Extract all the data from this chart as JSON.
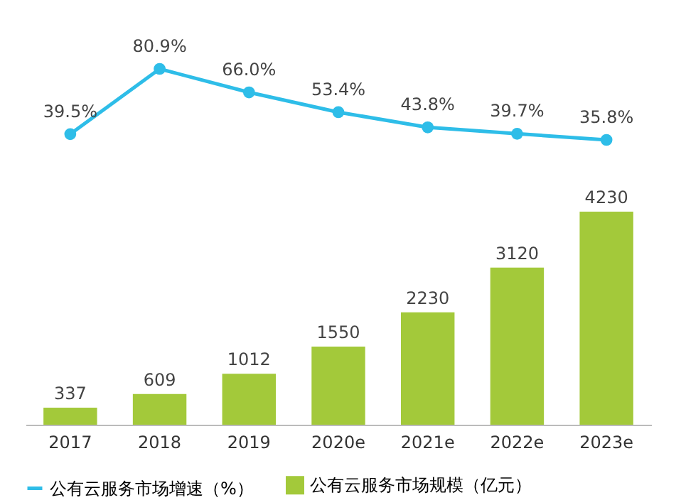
{
  "chart_data": [
    {
      "type": "line",
      "categories": [
        "2017",
        "2018",
        "2019",
        "2020e",
        "2021e",
        "2022e",
        "2023e"
      ],
      "marker": "circle",
      "tick_labels": false,
      "series": [
        {
          "name": "公有云服务市场增速（%）",
          "color": "#2ebde8",
          "values": [
            39.5,
            80.9,
            66.0,
            53.4,
            43.8,
            39.7,
            35.8
          ],
          "value_labels": [
            "39.5%",
            "80.9%",
            "66.0%",
            "53.4%",
            "43.8%",
            "39.7%",
            "35.8%"
          ]
        }
      ]
    },
    {
      "type": "bar",
      "categories": [
        "2017",
        "2018",
        "2019",
        "2020e",
        "2021e",
        "2022e",
        "2023e"
      ],
      "legend": "bottom",
      "series": [
        {
          "name": "公有云服务市场规模（亿元）",
          "color": "#a3c93a",
          "values": [
            337,
            609,
            1012,
            1550,
            2230,
            3120,
            4230
          ],
          "value_labels": [
            "337",
            "609",
            "1012",
            "1550",
            "2230",
            "3120",
            "4230"
          ]
        }
      ]
    }
  ]
}
